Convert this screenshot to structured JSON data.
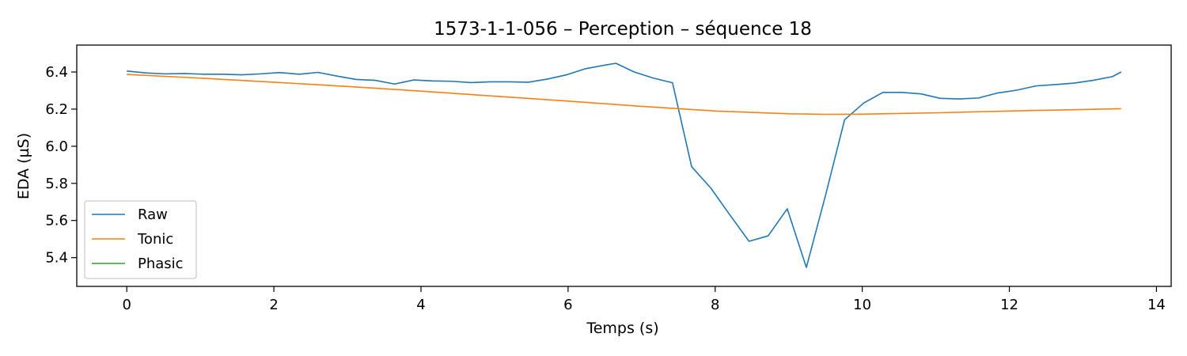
{
  "chart_data": {
    "type": "line",
    "title": "1573-1-1-056 – Perception – séquence 18",
    "xlabel": "Temps (s)",
    "ylabel": "EDA (µS)",
    "xlim": [
      -0.68,
      14.2
    ],
    "ylim": [
      5.245,
      6.545
    ],
    "xticks": [
      0,
      2,
      4,
      6,
      8,
      10,
      12,
      14
    ],
    "xtick_labels": [
      "0",
      "2",
      "4",
      "6",
      "8",
      "10",
      "12",
      "14"
    ],
    "yticks": [
      5.4,
      5.6,
      5.8,
      6.0,
      6.2,
      6.4
    ],
    "ytick_labels": [
      "5.4",
      "5.6",
      "5.8",
      "6.0",
      "6.2",
      "6.4"
    ],
    "grid": false,
    "legend_position": "lower-left",
    "series": [
      {
        "name": "Raw",
        "color": "#1f77b4",
        "x": [
          0.0,
          0.26,
          0.52,
          0.78,
          1.04,
          1.3,
          1.56,
          1.82,
          2.08,
          2.34,
          2.6,
          2.86,
          3.12,
          3.38,
          3.64,
          3.9,
          4.16,
          4.42,
          4.68,
          4.94,
          5.2,
          5.46,
          5.72,
          5.98,
          6.24,
          6.5,
          6.65,
          6.9,
          7.16,
          7.42,
          7.68,
          7.94,
          8.2,
          8.46,
          8.72,
          8.98,
          9.24,
          9.5,
          9.76,
          10.02,
          10.28,
          10.54,
          10.8,
          11.06,
          11.32,
          11.58,
          11.84,
          12.1,
          12.36,
          12.62,
          12.88,
          13.14,
          13.4,
          13.52
        ],
        "values": [
          6.405,
          6.395,
          6.39,
          6.392,
          6.388,
          6.388,
          6.385,
          6.39,
          6.397,
          6.388,
          6.398,
          6.378,
          6.36,
          6.355,
          6.335,
          6.357,
          6.352,
          6.35,
          6.343,
          6.347,
          6.347,
          6.345,
          6.362,
          6.385,
          6.418,
          6.437,
          6.447,
          6.4,
          6.367,
          6.342,
          5.89,
          5.775,
          5.63,
          5.488,
          5.517,
          5.663,
          5.347,
          5.735,
          6.143,
          6.233,
          6.29,
          6.29,
          6.282,
          6.258,
          6.255,
          6.26,
          6.287,
          6.302,
          6.325,
          6.332,
          6.34,
          6.355,
          6.375,
          6.4
        ]
      },
      {
        "name": "Tonic",
        "color": "#ff7f0e",
        "x": [
          0.0,
          1.0,
          2.0,
          3.0,
          4.0,
          5.0,
          6.0,
          7.0,
          8.0,
          9.0,
          9.5,
          10.0,
          11.0,
          12.0,
          13.0,
          13.52
        ],
        "values": [
          6.387,
          6.367,
          6.345,
          6.322,
          6.297,
          6.27,
          6.243,
          6.215,
          6.19,
          6.175,
          6.172,
          6.173,
          6.18,
          6.19,
          6.198,
          6.202
        ]
      },
      {
        "name": "Phasic",
        "color": "#2ca02c",
        "x": [],
        "values": []
      }
    ]
  }
}
